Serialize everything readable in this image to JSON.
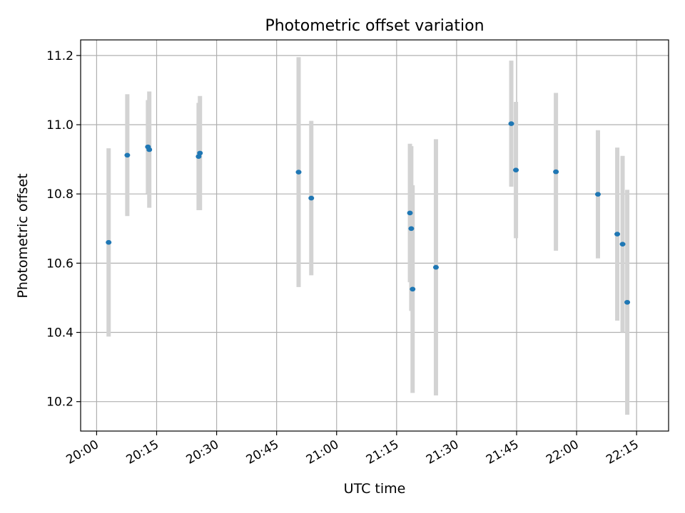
{
  "chart_data": {
    "type": "scatter",
    "title": "Photometric offset variation",
    "xlabel": "UTC time",
    "ylabel": "Photometric offset",
    "xlim": [
      "19:56",
      "22:23"
    ],
    "ylim": [
      10.115,
      11.245
    ],
    "grid": true,
    "x_ticks": [
      "20:00",
      "20:15",
      "20:30",
      "20:45",
      "21:00",
      "21:15",
      "21:30",
      "21:45",
      "22:00",
      "22:15"
    ],
    "y_ticks": [
      10.2,
      10.4,
      10.6,
      10.8,
      11.0,
      11.2
    ],
    "y_tick_labels": [
      "10.2",
      "10.4",
      "10.6",
      "10.8",
      "11.0",
      "11.2"
    ],
    "colors": {
      "marker": "#1f77b4",
      "errorbar": "#d3d3d3",
      "grid": "#b0b0b0",
      "axes": "#000000"
    },
    "series": [
      {
        "points": [
          {
            "x": "20:03:00",
            "y": 10.66,
            "err": 0.272
          },
          {
            "x": "20:07:40",
            "y": 10.912,
            "err": 0.176
          },
          {
            "x": "20:12:50",
            "y": 10.936,
            "err": 0.135
          },
          {
            "x": "20:13:10",
            "y": 10.928,
            "err": 0.168
          },
          {
            "x": "20:25:30",
            "y": 10.908,
            "err": 0.155
          },
          {
            "x": "20:25:50",
            "y": 10.918,
            "err": 0.165
          },
          {
            "x": "20:50:30",
            "y": 10.863,
            "err": 0.332
          },
          {
            "x": "20:53:40",
            "y": 10.788,
            "err": 0.223
          },
          {
            "x": "21:18:20",
            "y": 10.745,
            "err": 0.2
          },
          {
            "x": "21:18:40",
            "y": 10.7,
            "err": 0.238
          },
          {
            "x": "21:19:00",
            "y": 10.525,
            "err": 0.3
          },
          {
            "x": "21:24:50",
            "y": 10.588,
            "err": 0.37
          },
          {
            "x": "21:43:40",
            "y": 11.003,
            "err": 0.182
          },
          {
            "x": "21:44:50",
            "y": 10.869,
            "err": 0.197
          },
          {
            "x": "21:54:50",
            "y": 10.864,
            "err": 0.228
          },
          {
            "x": "22:05:20",
            "y": 10.799,
            "err": 0.185
          },
          {
            "x": "22:10:10",
            "y": 10.684,
            "err": 0.25
          },
          {
            "x": "22:11:30",
            "y": 10.655,
            "err": 0.255
          },
          {
            "x": "22:12:40",
            "y": 10.487,
            "err": 0.325
          }
        ]
      }
    ]
  }
}
